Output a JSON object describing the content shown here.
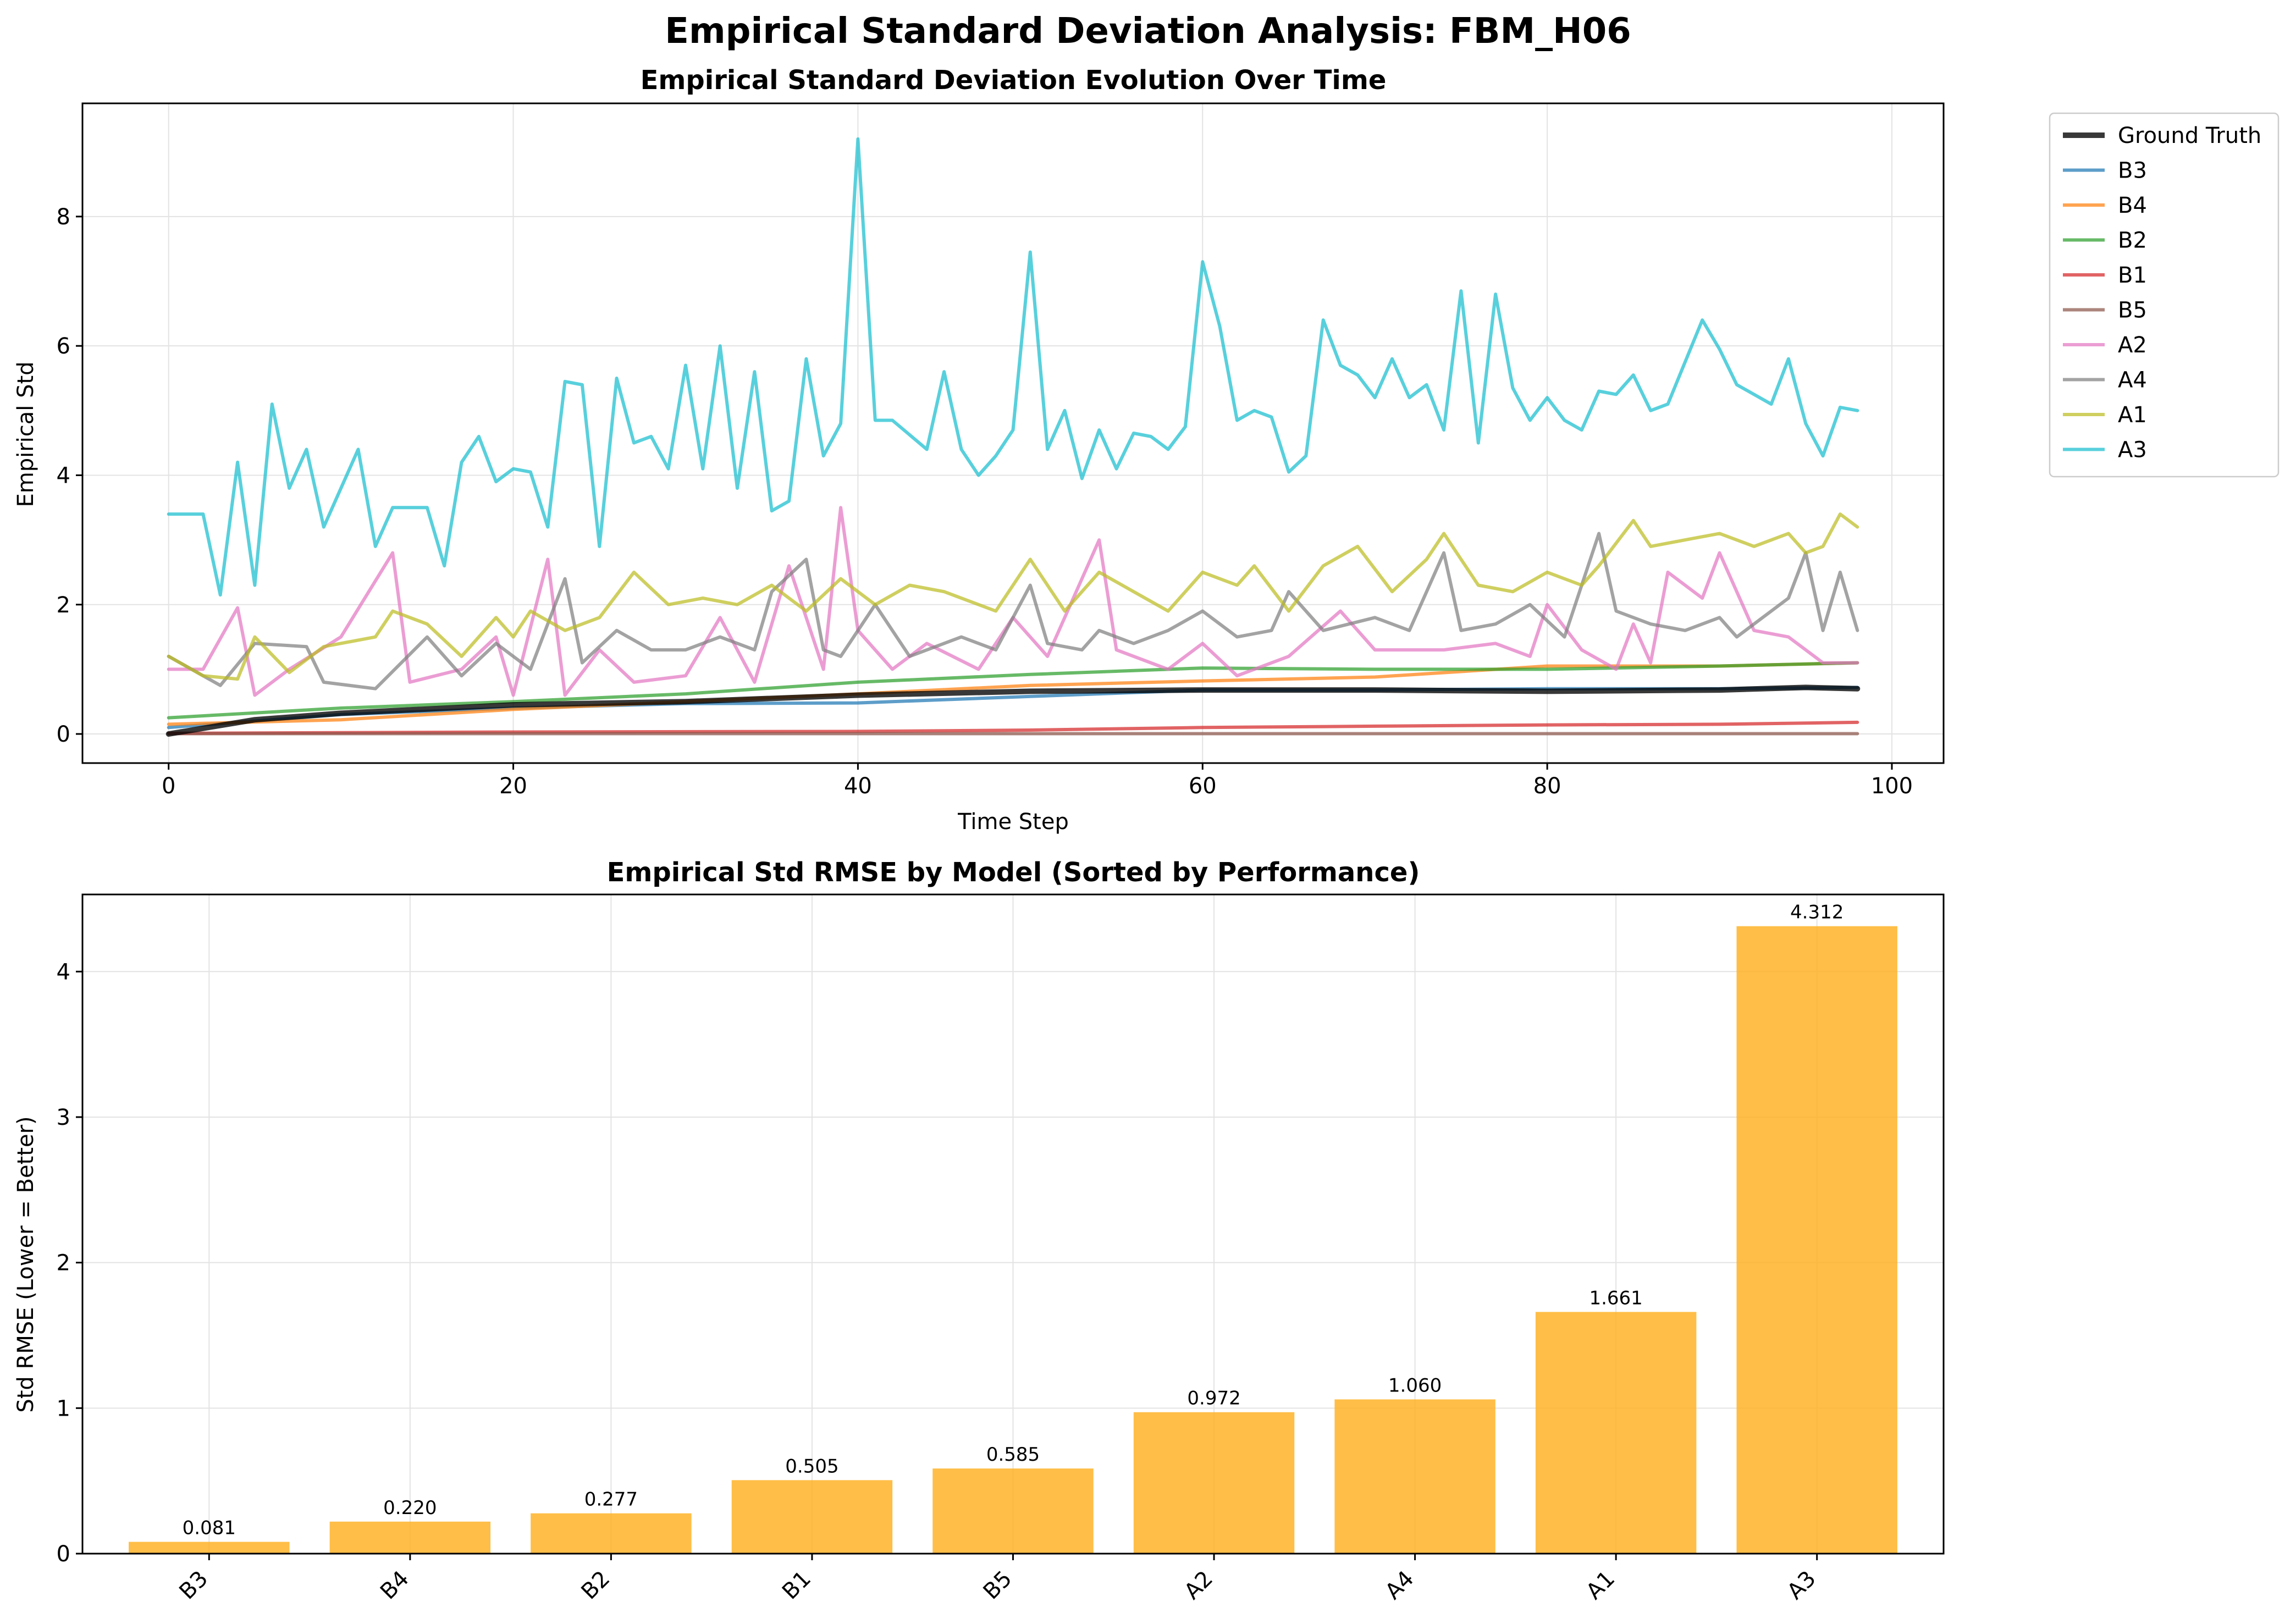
{
  "suptitle": "Empirical Standard Deviation Analysis: FBM_H06",
  "colors": {
    "Ground Truth": "#000000",
    "B3": "#1f77b4",
    "B4": "#ff7f0e",
    "B2": "#2ca02c",
    "B1": "#d62728",
    "B5": "#8c564b",
    "A2": "#e377c2",
    "A4": "#7f7f7f",
    "A1": "#bcbd22",
    "A3": "#17becf",
    "bar": "#ffb020"
  },
  "chart_data": [
    {
      "type": "line",
      "title": "Empirical Standard Deviation Evolution Over Time",
      "xlabel": "Time Step",
      "ylabel": "Empirical Std",
      "xlim": [
        -5,
        103
      ],
      "ylim": [
        -0.45,
        9.75
      ],
      "xticks": [
        0,
        20,
        40,
        60,
        80,
        100
      ],
      "yticks": [
        0,
        2,
        4,
        6,
        8
      ],
      "grid": true,
      "legend_position": "outside right",
      "series": [
        {
          "name": "Ground Truth",
          "x": [
            0,
            5,
            10,
            20,
            30,
            40,
            50,
            60,
            70,
            80,
            90,
            95,
            98
          ],
          "y": [
            0.0,
            0.22,
            0.32,
            0.45,
            0.5,
            0.6,
            0.66,
            0.68,
            0.68,
            0.66,
            0.68,
            0.72,
            0.7
          ]
        },
        {
          "name": "B3",
          "x": [
            0,
            10,
            20,
            30,
            40,
            50,
            60,
            70,
            80,
            90,
            98
          ],
          "y": [
            0.1,
            0.3,
            0.4,
            0.47,
            0.48,
            0.58,
            0.68,
            0.68,
            0.7,
            0.7,
            0.72
          ]
        },
        {
          "name": "B4",
          "x": [
            0,
            10,
            20,
            30,
            40,
            50,
            60,
            70,
            80,
            90,
            98
          ],
          "y": [
            0.15,
            0.22,
            0.38,
            0.5,
            0.62,
            0.75,
            0.82,
            0.88,
            1.05,
            1.05,
            1.1
          ]
        },
        {
          "name": "B2",
          "x": [
            0,
            10,
            20,
            30,
            40,
            50,
            60,
            70,
            80,
            90,
            98
          ],
          "y": [
            0.25,
            0.4,
            0.5,
            0.62,
            0.8,
            0.92,
            1.02,
            1.0,
            1.0,
            1.05,
            1.1
          ]
        },
        {
          "name": "B1",
          "x": [
            0,
            20,
            40,
            50,
            60,
            70,
            80,
            90,
            98
          ],
          "y": [
            0.01,
            0.03,
            0.04,
            0.06,
            0.1,
            0.12,
            0.14,
            0.15,
            0.18
          ]
        },
        {
          "name": "B5",
          "x": [
            0,
            50,
            98
          ],
          "y": [
            0.005,
            0.005,
            0.005
          ]
        },
        {
          "name": "A2",
          "x": [
            0,
            2,
            4,
            5,
            7,
            10,
            13,
            14,
            17,
            19,
            20,
            22,
            23,
            25,
            27,
            30,
            32,
            34,
            36,
            38,
            39,
            40,
            42,
            44,
            47,
            49,
            51,
            54,
            55,
            58,
            60,
            62,
            65,
            68,
            70,
            74,
            77,
            79,
            80,
            82,
            84,
            85,
            86,
            87,
            89,
            90,
            92,
            94,
            96,
            98
          ],
          "y": [
            1.0,
            1.0,
            1.95,
            0.6,
            1.0,
            1.5,
            2.8,
            0.8,
            1.0,
            1.5,
            0.6,
            2.7,
            0.6,
            1.3,
            0.8,
            0.9,
            1.8,
            0.8,
            2.6,
            1.0,
            3.5,
            1.6,
            1.0,
            1.4,
            1.0,
            1.8,
            1.2,
            3.0,
            1.3,
            1.0,
            1.4,
            0.9,
            1.2,
            1.9,
            1.3,
            1.3,
            1.4,
            1.2,
            2.0,
            1.3,
            1.0,
            1.7,
            1.1,
            2.5,
            2.1,
            2.8,
            1.6,
            1.5,
            1.1,
            1.1
          ]
        },
        {
          "name": "A4",
          "x": [
            0,
            3,
            5,
            8,
            9,
            12,
            15,
            17,
            19,
            21,
            23,
            24,
            26,
            28,
            30,
            32,
            34,
            35,
            37,
            38,
            39,
            41,
            43,
            46,
            48,
            50,
            51,
            53,
            54,
            56,
            58,
            60,
            62,
            64,
            65,
            67,
            70,
            72,
            74,
            75,
            77,
            79,
            81,
            83,
            84,
            86,
            88,
            90,
            91,
            94,
            95,
            96,
            97,
            98
          ],
          "y": [
            1.2,
            0.75,
            1.4,
            1.35,
            0.8,
            0.7,
            1.5,
            0.9,
            1.4,
            1.0,
            2.4,
            1.1,
            1.6,
            1.3,
            1.3,
            1.5,
            1.3,
            2.2,
            2.7,
            1.3,
            1.2,
            2.0,
            1.2,
            1.5,
            1.3,
            2.3,
            1.4,
            1.3,
            1.6,
            1.4,
            1.6,
            1.9,
            1.5,
            1.6,
            2.2,
            1.6,
            1.8,
            1.6,
            2.8,
            1.6,
            1.7,
            2.0,
            1.5,
            3.1,
            1.9,
            1.7,
            1.6,
            1.8,
            1.5,
            2.1,
            2.8,
            1.6,
            2.5,
            1.6
          ]
        },
        {
          "name": "A1",
          "x": [
            0,
            2,
            4,
            5,
            7,
            9,
            12,
            13,
            15,
            17,
            19,
            20,
            21,
            23,
            25,
            27,
            29,
            31,
            33,
            35,
            37,
            39,
            41,
            43,
            45,
            48,
            50,
            52,
            54,
            56,
            58,
            60,
            62,
            63,
            65,
            67,
            69,
            71,
            73,
            74,
            76,
            78,
            80,
            82,
            83,
            85,
            86,
            88,
            90,
            92,
            94,
            95,
            96,
            97,
            98
          ],
          "y": [
            1.2,
            0.9,
            0.85,
            1.5,
            0.95,
            1.35,
            1.5,
            1.9,
            1.7,
            1.2,
            1.8,
            1.5,
            1.9,
            1.6,
            1.8,
            2.5,
            2.0,
            2.1,
            2.0,
            2.3,
            1.9,
            2.4,
            2.0,
            2.3,
            2.2,
            1.9,
            2.7,
            1.9,
            2.5,
            2.2,
            1.9,
            2.5,
            2.3,
            2.6,
            1.9,
            2.6,
            2.9,
            2.2,
            2.7,
            3.1,
            2.3,
            2.2,
            2.5,
            2.3,
            2.6,
            3.3,
            2.9,
            3.0,
            3.1,
            2.9,
            3.1,
            2.8,
            2.9,
            3.4,
            3.2
          ]
        },
        {
          "name": "A3",
          "x": [
            0,
            2,
            3,
            4,
            5,
            6,
            7,
            8,
            9,
            11,
            12,
            13,
            15,
            16,
            17,
            18,
            19,
            20,
            21,
            22,
            23,
            24,
            25,
            26,
            27,
            28,
            29,
            30,
            31,
            32,
            33,
            34,
            35,
            36,
            37,
            38,
            39,
            40,
            41,
            42,
            44,
            45,
            46,
            47,
            48,
            49,
            50,
            51,
            52,
            53,
            54,
            55,
            56,
            57,
            58,
            59,
            60,
            61,
            62,
            63,
            64,
            65,
            66,
            67,
            68,
            69,
            70,
            71,
            72,
            73,
            74,
            75,
            76,
            77,
            78,
            79,
            80,
            81,
            82,
            83,
            84,
            85,
            86,
            87,
            89,
            90,
            91,
            93,
            94,
            95,
            96,
            97,
            98
          ],
          "y": [
            3.4,
            3.4,
            2.15,
            4.2,
            2.3,
            5.1,
            3.8,
            4.4,
            3.2,
            4.4,
            2.9,
            3.5,
            3.5,
            2.6,
            4.2,
            4.6,
            3.9,
            4.1,
            4.05,
            3.2,
            5.45,
            5.4,
            2.9,
            5.5,
            4.5,
            4.6,
            4.1,
            5.7,
            4.1,
            6.0,
            3.8,
            5.6,
            3.45,
            3.6,
            5.8,
            4.3,
            4.8,
            9.2,
            4.85,
            4.85,
            4.4,
            5.6,
            4.4,
            4.0,
            4.3,
            4.7,
            7.45,
            4.4,
            5.0,
            3.95,
            4.7,
            4.1,
            4.65,
            4.6,
            4.4,
            4.75,
            7.3,
            6.3,
            4.85,
            5.0,
            4.9,
            4.05,
            4.3,
            6.4,
            5.7,
            5.55,
            5.2,
            5.8,
            5.2,
            5.4,
            4.7,
            6.85,
            4.5,
            6.8,
            5.35,
            4.85,
            5.2,
            4.85,
            4.7,
            5.3,
            5.25,
            5.55,
            5.0,
            5.1,
            6.4,
            5.95,
            5.4,
            5.1,
            5.8,
            4.8,
            4.3,
            5.05,
            5.0
          ]
        }
      ]
    },
    {
      "type": "bar",
      "title": "Empirical Std RMSE by Model (Sorted by Performance)",
      "xlabel": "",
      "ylabel": "Std RMSE (Lower = Better)",
      "ylim": [
        0,
        4.53
      ],
      "yticks": [
        0,
        1,
        2,
        3,
        4
      ],
      "grid": true,
      "categories": [
        "B3",
        "B4",
        "B2",
        "B1",
        "B5",
        "A2",
        "A4",
        "A1",
        "A3"
      ],
      "values": [
        0.081,
        0.22,
        0.277,
        0.505,
        0.585,
        0.972,
        1.06,
        1.661,
        4.312
      ],
      "value_labels": [
        "0.081",
        "0.220",
        "0.277",
        "0.505",
        "0.585",
        "0.972",
        "1.060",
        "1.661",
        "4.312"
      ]
    }
  ]
}
